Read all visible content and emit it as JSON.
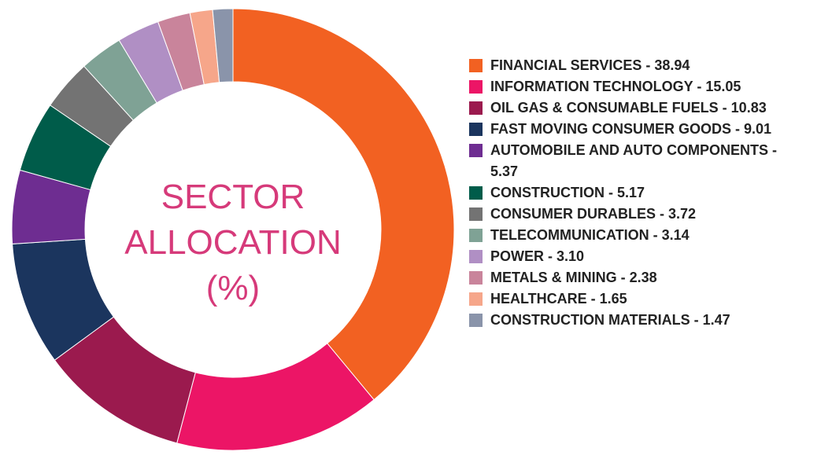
{
  "chart_data": {
    "type": "donut",
    "title": "SECTOR ALLOCATION (%)",
    "categories": [
      "FINANCIAL SERVICES - 38.94",
      "INFORMATION TECHNOLOGY - 15.05",
      "OIL GAS & CONSUMABLE FUELS - 10.83",
      "FAST MOVING CONSUMER GOODS - 9.01",
      "AUTOMOBILE AND AUTO COMPONENTS - 5.37",
      "CONSTRUCTION - 5.17",
      "CONSUMER DURABLES - 3.72",
      "TELECOMMUNICATION - 3.14",
      "POWER - 3.10",
      "METALS & MINING - 2.38",
      "HEALTHCARE - 1.65",
      "CONSTRUCTION MATERIALS - 1.47"
    ],
    "values": [
      38.94,
      15.05,
      10.83,
      9.01,
      5.37,
      5.17,
      3.72,
      3.14,
      3.1,
      2.38,
      1.65,
      1.47
    ],
    "colors": [
      "#f26122",
      "#ec1566",
      "#9b1a4e",
      "#1b355e",
      "#6e2d91",
      "#005c4a",
      "#737373",
      "#7fa295",
      "#b08fc4",
      "#c9849b",
      "#f6a68a",
      "#8a94aa"
    ]
  }
}
